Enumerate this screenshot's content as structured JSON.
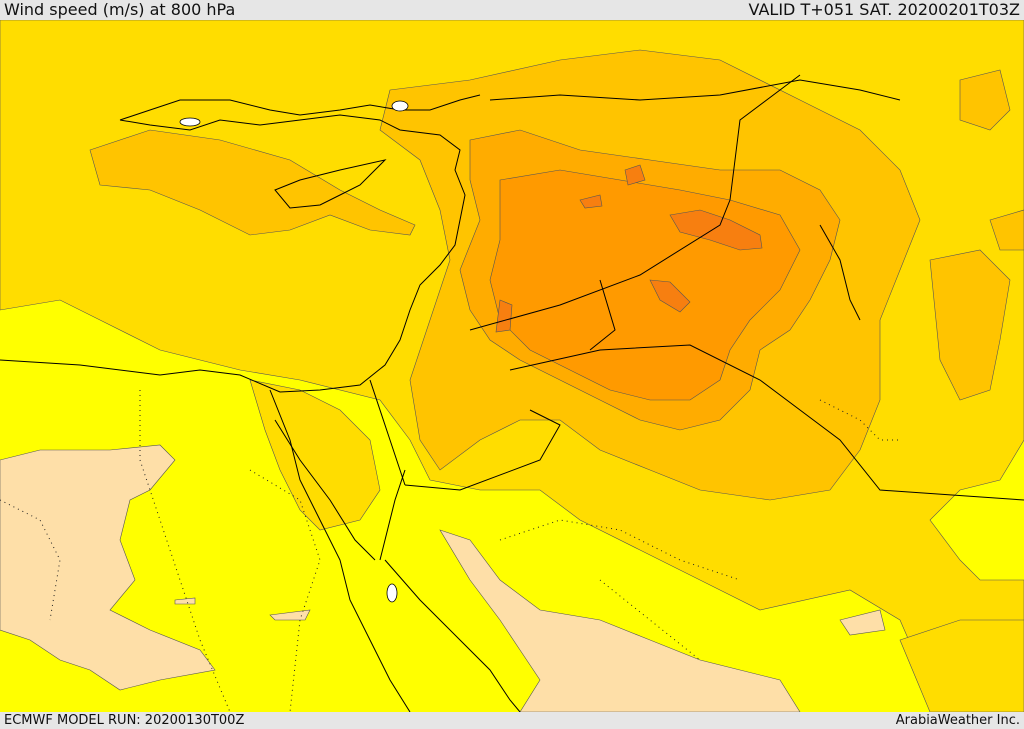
{
  "header": {
    "title": "Wind speed (m/s) at 800 hPa",
    "valid": "VALID T+051 SAT. 20200201T03Z"
  },
  "footer": {
    "model_run": "ECMWF MODEL RUN: 20200130T00Z",
    "credit": "ArabiaWeather Inc."
  },
  "palette": {
    "band_low": "#fedfa8",
    "band_1": "#ffff00",
    "band_2": "#ffdd00",
    "band_3": "#ffc400",
    "band_4": "#ffac00",
    "band_5": "#ff9a00",
    "band_6": "#f77f10",
    "border": "#000000",
    "contour": "#555555"
  }
}
